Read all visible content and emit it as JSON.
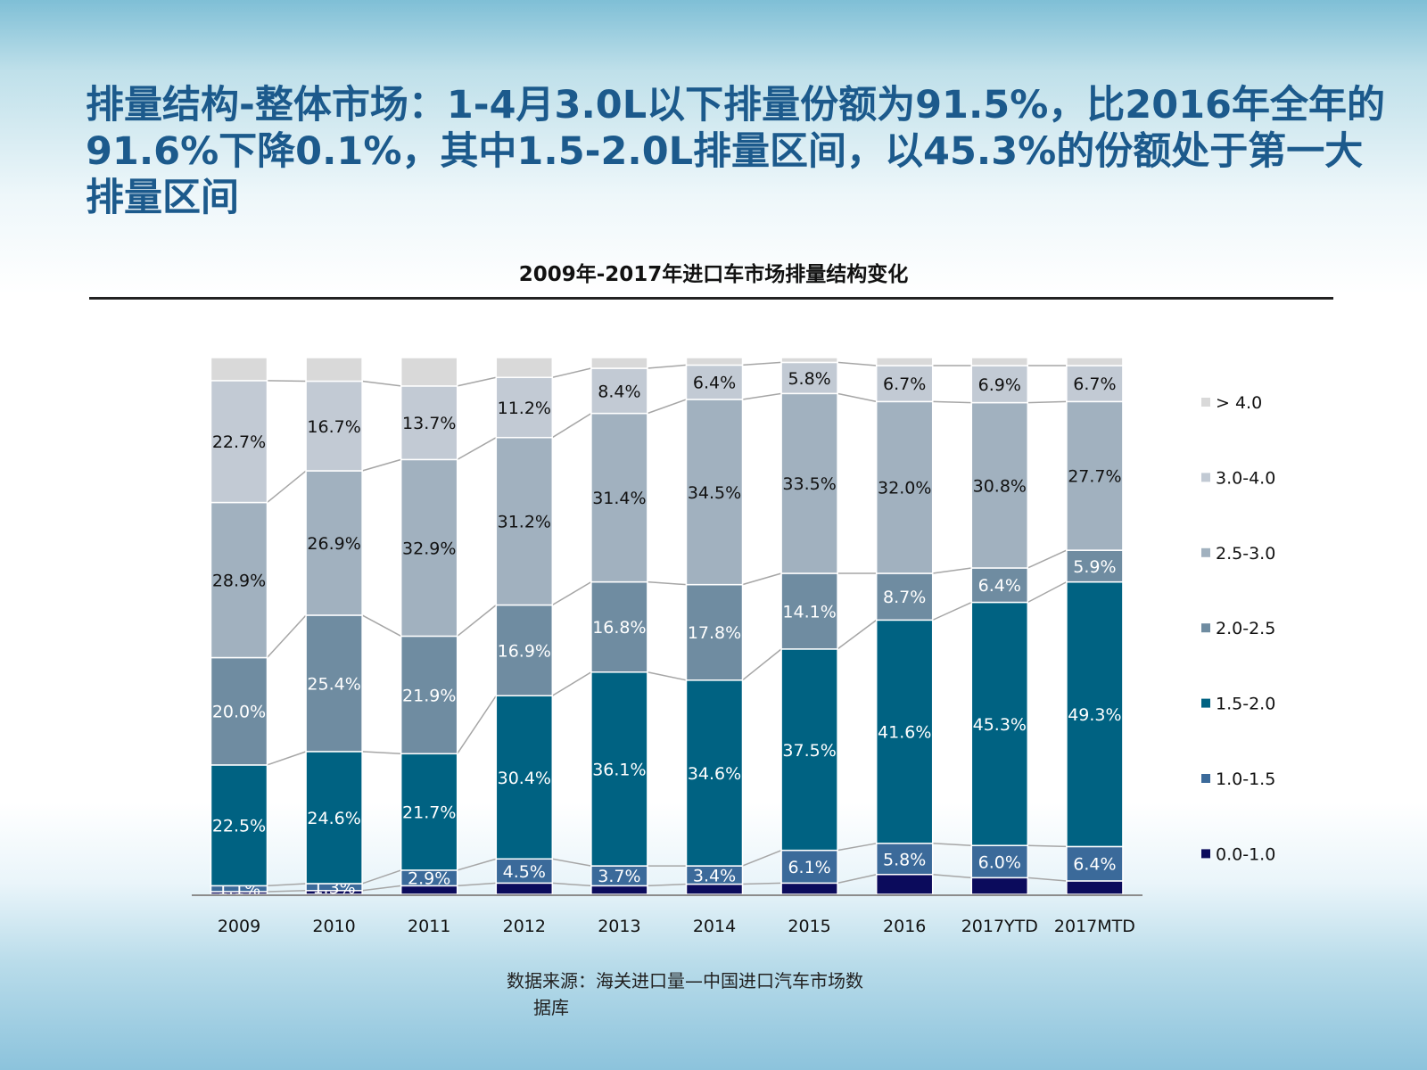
{
  "title": "排量结构-整体市场：1-4月3.0L以下排量份额为91.5%，比2016年全年的91.6%下降0.1%，其中1.5-2.0L排量区间，以45.3%的份额处于第一大排量区间",
  "source_line1": "数据来源：海关进口量—中国进口汽车市场数",
  "source_line2": "据库",
  "chart_data": {
    "type": "bar",
    "stacked": true,
    "percent": true,
    "title": "2009年-2017年进口车市场排量结构变化",
    "categories": [
      "2009",
      "2010",
      "2011",
      "2012",
      "2013",
      "2014",
      "2015",
      "2016",
      "2017YTD",
      "2017MTD"
    ],
    "ylim": [
      0,
      100
    ],
    "grid": false,
    "legend_position": "right",
    "series": [
      {
        "name": "0.0-1.0",
        "color": "#0b0b5c",
        "label_color": "#ffffff",
        "values": [
          0.5,
          0.7,
          1.6,
          2.1,
          1.6,
          1.9,
          2.1,
          3.7,
          3.1,
          2.5
        ],
        "labels": [
          "",
          "",
          "",
          "",
          "",
          "",
          "",
          "",
          "",
          ""
        ]
      },
      {
        "name": "1.0-1.5",
        "color": "#3b6a9a",
        "label_color": "#ffffff",
        "values": [
          1.1,
          1.3,
          2.9,
          4.5,
          3.7,
          3.4,
          6.1,
          5.8,
          6.0,
          6.4
        ],
        "labels": [
          "1.1%",
          "1.3%",
          "2.9%",
          "4.5%",
          "3.7%",
          "3.4%",
          "6.1%",
          "5.8%",
          "6.0%",
          "6.4%"
        ]
      },
      {
        "name": "1.5-2.0",
        "color": "#006282",
        "label_color": "#ffffff",
        "values": [
          22.5,
          24.6,
          21.7,
          30.4,
          36.1,
          34.6,
          37.5,
          41.6,
          45.3,
          49.3
        ],
        "labels": [
          "22.5%",
          "24.6%",
          "21.7%",
          "30.4%",
          "36.1%",
          "34.6%",
          "37.5%",
          "41.6%",
          "45.3%",
          "49.3%"
        ]
      },
      {
        "name": "2.0-2.5",
        "color": "#6f8ca1",
        "label_color": "#ffffff",
        "values": [
          20.0,
          25.4,
          21.9,
          16.9,
          16.8,
          17.8,
          14.1,
          8.7,
          6.4,
          5.9
        ],
        "labels": [
          "20.0%",
          "25.4%",
          "21.9%",
          "16.9%",
          "16.8%",
          "17.8%",
          "14.1%",
          "8.7%",
          "6.4%",
          "5.9%"
        ]
      },
      {
        "name": "2.5-3.0",
        "color": "#a1b1bf",
        "label_color": "#111111",
        "values": [
          28.9,
          26.9,
          32.9,
          31.2,
          31.4,
          34.5,
          33.5,
          32.0,
          30.8,
          27.7
        ],
        "labels": [
          "28.9%",
          "26.9%",
          "32.9%",
          "31.2%",
          "31.4%",
          "34.5%",
          "33.5%",
          "32.0%",
          "30.8%",
          "27.7%"
        ]
      },
      {
        "name": "3.0-4.0",
        "color": "#c2cad4",
        "label_color": "#111111",
        "values": [
          22.7,
          16.7,
          13.7,
          11.2,
          8.4,
          6.4,
          5.8,
          6.7,
          6.9,
          6.7
        ],
        "labels": [
          "22.7%",
          "16.7%",
          "13.7%",
          "11.2%",
          "8.4%",
          "6.4%",
          "5.8%",
          "6.7%",
          "6.9%",
          "6.7%"
        ]
      },
      {
        "name": "> 4.0",
        "color": "#d9d9d9",
        "label_color": "#111111",
        "values": [
          4.3,
          4.4,
          5.3,
          3.7,
          2.0,
          1.4,
          0.9,
          1.5,
          1.5,
          1.5
        ],
        "labels": [
          "",
          "",
          "",
          "",
          "",
          "",
          "",
          "",
          "",
          ""
        ]
      }
    ]
  }
}
